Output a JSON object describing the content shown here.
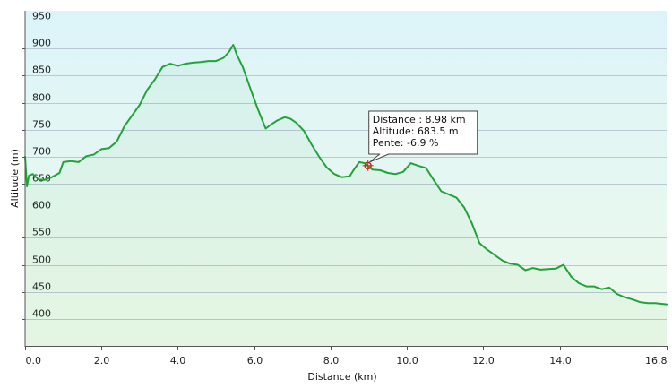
{
  "chart_data": {
    "type": "area",
    "xlabel": "Distance  (km)",
    "ylabel": "Altitude (m)",
    "xlim": [
      0,
      16.8
    ],
    "ylim": [
      350,
      970
    ],
    "x_ticks": [
      0,
      2,
      4,
      6,
      8,
      10,
      12,
      14,
      16.8
    ],
    "x_tick_labels": [
      "0.0",
      "2.0",
      "4.0",
      "6.0",
      "8.0",
      "10.0",
      "12.0",
      "14.0",
      "16.8"
    ],
    "y_ticks": [
      400,
      450,
      500,
      550,
      600,
      650,
      700,
      750,
      800,
      850,
      900,
      950
    ],
    "y_tick_labels": [
      "400",
      "450",
      "500",
      "550",
      "600",
      "650",
      "700",
      "750",
      "800",
      "850",
      "900",
      "950"
    ],
    "grid": "horizontal",
    "colors": {
      "line": "#22a33a",
      "fill_top": "#dcf4f9",
      "fill_bottom": "#eefaea",
      "grid": "#b9c7d6",
      "marker": "#d42020"
    },
    "series": [
      {
        "x": [
          0.0,
          0.05,
          0.1,
          0.2,
          0.35,
          0.5,
          0.7,
          0.9,
          1.0,
          1.2,
          1.4,
          1.6,
          1.8,
          2.0,
          2.2,
          2.4,
          2.6,
          2.8,
          3.0,
          3.2,
          3.4,
          3.6,
          3.8,
          4.0,
          4.2,
          4.4,
          4.6,
          4.8,
          5.0,
          5.2,
          5.35,
          5.45,
          5.55,
          5.7,
          5.9,
          6.1,
          6.3,
          6.45,
          6.6,
          6.8,
          6.95,
          7.1,
          7.3,
          7.5,
          7.7,
          7.9,
          8.1,
          8.3,
          8.5,
          8.6,
          8.75,
          8.9,
          8.98,
          9.1,
          9.3,
          9.5,
          9.7,
          9.9,
          10.1,
          10.3,
          10.5,
          10.7,
          10.9,
          11.1,
          11.3,
          11.5,
          11.7,
          11.9,
          12.1,
          12.3,
          12.5,
          12.7,
          12.9,
          13.1,
          13.3,
          13.5,
          13.7,
          13.9,
          14.1,
          14.3,
          14.5,
          14.7,
          14.9,
          15.1,
          15.3,
          15.5,
          15.7,
          15.9,
          16.1,
          16.3,
          16.5,
          16.8
        ],
        "y": [
          700,
          645,
          665,
          668,
          658,
          657,
          662,
          670,
          690,
          692,
          690,
          701,
          704,
          714,
          716,
          728,
          756,
          776,
          796,
          824,
          843,
          866,
          872,
          868,
          872,
          874,
          875,
          877,
          877,
          883,
          895,
          907,
          888,
          866,
          826,
          787,
          752,
          760,
          767,
          773,
          770,
          763,
          748,
          723,
          700,
          680,
          668,
          662,
          664,
          675,
          690,
          688,
          683,
          676,
          675,
          670,
          668,
          672,
          688,
          683,
          679,
          657,
          636,
          630,
          624,
          606,
          577,
          540,
          528,
          518,
          508,
          502,
          500,
          490,
          494,
          491,
          492,
          493,
          500,
          478,
          466,
          460,
          460,
          455,
          458,
          446,
          440,
          436,
          431,
          429,
          429,
          427
        ]
      }
    ],
    "tooltip": {
      "x": 8.98,
      "y": 683.5,
      "lines": [
        "Distance : 8.98 km",
        "Altitude: 683.5 m",
        "Pente: -6.9 %"
      ]
    }
  }
}
